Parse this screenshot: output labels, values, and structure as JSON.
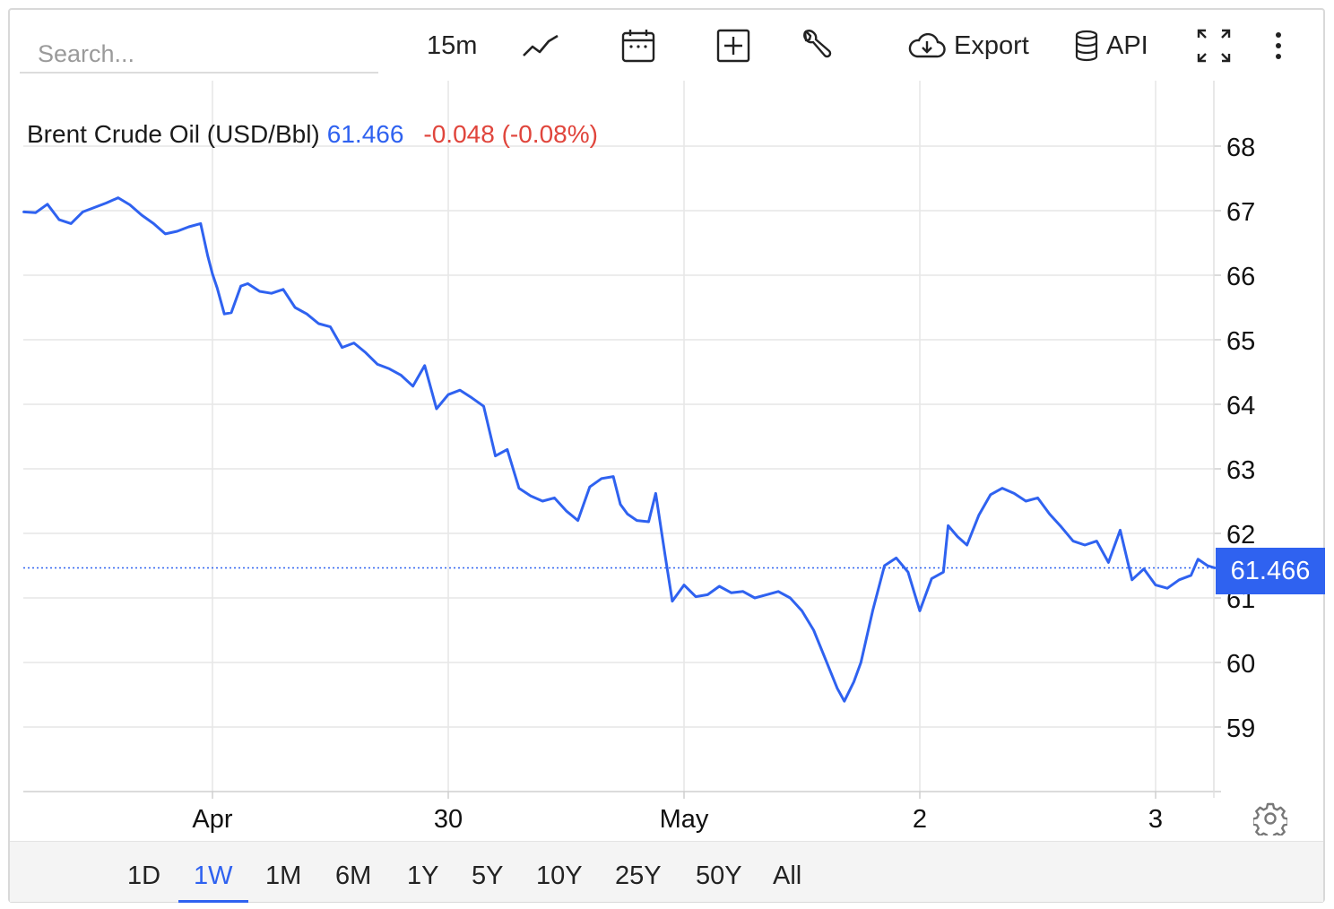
{
  "toolbar": {
    "search_placeholder": "Search...",
    "interval": "15m",
    "chart_type_icon": "line-chart-icon",
    "calendar_icon": "calendar-icon",
    "add_icon": "plus-square-icon",
    "tools_icon": "wrench-icon",
    "export_label": "Export",
    "api_label": "API",
    "fullscreen_icon": "expand-icon",
    "more_icon": "more-vertical-icon"
  },
  "legend": {
    "name": "Brent Crude Oil (USD/Bbl)",
    "price": "61.466",
    "change": "-0.048 (-0.08%)"
  },
  "last_price_label": "61.466",
  "settings_icon": "gear-icon",
  "ranges": [
    {
      "label": "1D",
      "active": false
    },
    {
      "label": "1W",
      "active": true
    },
    {
      "label": "1M",
      "active": false
    },
    {
      "label": "6M",
      "active": false
    },
    {
      "label": "1Y",
      "active": false
    },
    {
      "label": "5Y",
      "active": false
    },
    {
      "label": "10Y",
      "active": false
    },
    {
      "label": "25Y",
      "active": false
    },
    {
      "label": "50Y",
      "active": false
    },
    {
      "label": "All",
      "active": false
    }
  ],
  "colors": {
    "line": "#2f62f0",
    "negative": "#e0453c",
    "grid": "#e6e6e6"
  },
  "chart_data": {
    "type": "line",
    "title": "Brent Crude Oil (USD/Bbl)",
    "xlabel": "",
    "ylabel": "",
    "x_ticks": [
      "Apr",
      "30",
      "May",
      "2",
      "3"
    ],
    "y_ticks": [
      59,
      60,
      61,
      62,
      63,
      64,
      65,
      66,
      67,
      68
    ],
    "ylim": [
      58,
      68.8
    ],
    "grid": true,
    "last_value": 61.466,
    "series": [
      {
        "name": "",
        "x_unit": "trading-day position (Apr = 1.0, 30 = 2.0, May = 3.0, 2 = 4.0, 3 = 5.0)",
        "points": [
          [
            0.2,
            66.98
          ],
          [
            0.25,
            66.97
          ],
          [
            0.3,
            67.1
          ],
          [
            0.35,
            66.86
          ],
          [
            0.4,
            66.8
          ],
          [
            0.45,
            66.98
          ],
          [
            0.5,
            67.05
          ],
          [
            0.55,
            67.12
          ],
          [
            0.6,
            67.2
          ],
          [
            0.65,
            67.09
          ],
          [
            0.7,
            66.93
          ],
          [
            0.75,
            66.8
          ],
          [
            0.8,
            66.64
          ],
          [
            0.85,
            66.68
          ],
          [
            0.9,
            66.75
          ],
          [
            0.95,
            66.8
          ],
          [
            0.98,
            66.3
          ],
          [
            1.0,
            66.02
          ],
          [
            1.02,
            65.8
          ],
          [
            1.05,
            65.4
          ],
          [
            1.08,
            65.42
          ],
          [
            1.12,
            65.83
          ],
          [
            1.15,
            65.87
          ],
          [
            1.2,
            65.75
          ],
          [
            1.25,
            65.72
          ],
          [
            1.3,
            65.78
          ],
          [
            1.35,
            65.5
          ],
          [
            1.4,
            65.4
          ],
          [
            1.45,
            65.25
          ],
          [
            1.5,
            65.2
          ],
          [
            1.55,
            64.88
          ],
          [
            1.6,
            64.95
          ],
          [
            1.65,
            64.8
          ],
          [
            1.7,
            64.62
          ],
          [
            1.75,
            64.55
          ],
          [
            1.8,
            64.45
          ],
          [
            1.85,
            64.28
          ],
          [
            1.9,
            64.6
          ],
          [
            1.95,
            63.93
          ],
          [
            2.0,
            64.15
          ],
          [
            2.05,
            64.22
          ],
          [
            2.1,
            64.1
          ],
          [
            2.15,
            63.97
          ],
          [
            2.2,
            63.2
          ],
          [
            2.25,
            63.3
          ],
          [
            2.3,
            62.7
          ],
          [
            2.35,
            62.58
          ],
          [
            2.4,
            62.5
          ],
          [
            2.45,
            62.55
          ],
          [
            2.5,
            62.35
          ],
          [
            2.55,
            62.2
          ],
          [
            2.6,
            62.72
          ],
          [
            2.65,
            62.85
          ],
          [
            2.7,
            62.88
          ],
          [
            2.73,
            62.45
          ],
          [
            2.76,
            62.3
          ],
          [
            2.8,
            62.2
          ],
          [
            2.85,
            62.18
          ],
          [
            2.88,
            62.62
          ],
          [
            2.92,
            61.65
          ],
          [
            2.95,
            60.95
          ],
          [
            3.0,
            61.2
          ],
          [
            3.05,
            61.02
          ],
          [
            3.1,
            61.05
          ],
          [
            3.15,
            61.18
          ],
          [
            3.2,
            61.08
          ],
          [
            3.25,
            61.1
          ],
          [
            3.3,
            61.0
          ],
          [
            3.35,
            61.05
          ],
          [
            3.4,
            61.1
          ],
          [
            3.45,
            61.0
          ],
          [
            3.5,
            60.8
          ],
          [
            3.55,
            60.5
          ],
          [
            3.6,
            60.05
          ],
          [
            3.65,
            59.6
          ],
          [
            3.68,
            59.4
          ],
          [
            3.72,
            59.7
          ],
          [
            3.75,
            60.0
          ],
          [
            3.8,
            60.8
          ],
          [
            3.85,
            61.5
          ],
          [
            3.9,
            61.62
          ],
          [
            3.95,
            61.4
          ],
          [
            4.0,
            60.8
          ],
          [
            4.05,
            61.3
          ],
          [
            4.1,
            61.4
          ],
          [
            4.12,
            62.12
          ],
          [
            4.16,
            61.95
          ],
          [
            4.2,
            61.82
          ],
          [
            4.25,
            62.28
          ],
          [
            4.3,
            62.6
          ],
          [
            4.35,
            62.7
          ],
          [
            4.4,
            62.62
          ],
          [
            4.45,
            62.5
          ],
          [
            4.5,
            62.55
          ],
          [
            4.55,
            62.3
          ],
          [
            4.6,
            62.1
          ],
          [
            4.65,
            61.88
          ],
          [
            4.7,
            61.82
          ],
          [
            4.75,
            61.88
          ],
          [
            4.8,
            61.55
          ],
          [
            4.85,
            62.05
          ],
          [
            4.9,
            61.28
          ],
          [
            4.95,
            61.45
          ],
          [
            5.0,
            61.2
          ],
          [
            5.05,
            61.15
          ],
          [
            5.1,
            61.28
          ],
          [
            5.15,
            61.35
          ],
          [
            5.18,
            61.6
          ],
          [
            5.22,
            61.5
          ],
          [
            5.25,
            61.466
          ]
        ]
      }
    ]
  }
}
